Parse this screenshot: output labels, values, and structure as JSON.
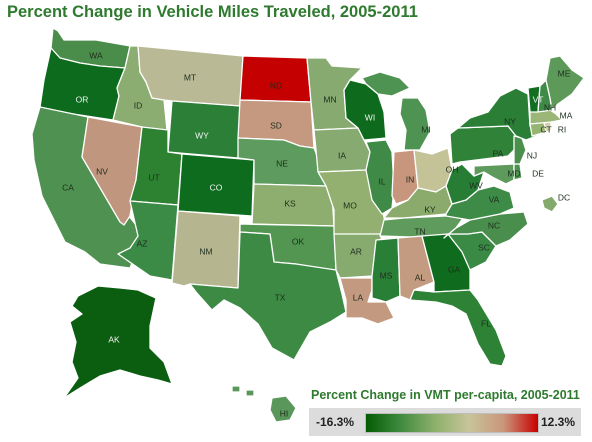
{
  "title": "Percent Change in Vehicle Miles Traveled, 2005-2011",
  "legend": {
    "title": "Percent Change in VMT per-capita, 2005-2011",
    "min_label": "-16.3%",
    "max_label": "12.3%",
    "min_value": -16.3,
    "max_value": 12.3,
    "color_stops": [
      "#045c04",
      "#3f8a3f",
      "#8eb06b",
      "#c8c49a",
      "#c9967b",
      "#c80000"
    ]
  },
  "states": [
    {
      "code": "WA",
      "fill": "#4a8c4a"
    },
    {
      "code": "OR",
      "fill": "#0d6b1d"
    },
    {
      "code": "CA",
      "fill": "#4f9150"
    },
    {
      "code": "NV",
      "fill": "#c1967f"
    },
    {
      "code": "ID",
      "fill": "#8cad71"
    },
    {
      "code": "MT",
      "fill": "#b9b996"
    },
    {
      "code": "WY",
      "fill": "#2b7f37"
    },
    {
      "code": "UT",
      "fill": "#2d8232"
    },
    {
      "code": "CO",
      "fill": "#0e6c1f"
    },
    {
      "code": "AZ",
      "fill": "#3b8b46"
    },
    {
      "code": "NM",
      "fill": "#b5b690"
    },
    {
      "code": "ND",
      "fill": "#c40000"
    },
    {
      "code": "SD",
      "fill": "#c5997f"
    },
    {
      "code": "NE",
      "fill": "#5e9b5e"
    },
    {
      "code": "KS",
      "fill": "#8dae6e"
    },
    {
      "code": "OK",
      "fill": "#529652"
    },
    {
      "code": "TX",
      "fill": "#3c8a44"
    },
    {
      "code": "MN",
      "fill": "#86aa70"
    },
    {
      "code": "IA",
      "fill": "#86aa6f"
    },
    {
      "code": "MO",
      "fill": "#93b070"
    },
    {
      "code": "AR",
      "fill": "#87aa6f"
    },
    {
      "code": "LA",
      "fill": "#c39a80"
    },
    {
      "code": "WI",
      "fill": "#0e6b1d"
    },
    {
      "code": "IL",
      "fill": "#3e8a46"
    },
    {
      "code": "MI",
      "fill": "#4f9352"
    },
    {
      "code": "IN",
      "fill": "#c8957d"
    },
    {
      "code": "OH",
      "fill": "#c4c398"
    },
    {
      "code": "KY",
      "fill": "#8bab6d"
    },
    {
      "code": "TN",
      "fill": "#5f9b5c"
    },
    {
      "code": "MS",
      "fill": "#2a7f37"
    },
    {
      "code": "AL",
      "fill": "#c39b80"
    },
    {
      "code": "GA",
      "fill": "#0f6b1d"
    },
    {
      "code": "FL",
      "fill": "#2d8236"
    },
    {
      "code": "SC",
      "fill": "#3a8a46"
    },
    {
      "code": "NC",
      "fill": "#4a8e4d"
    },
    {
      "code": "VA",
      "fill": "#3d8b46"
    },
    {
      "code": "WV",
      "fill": "#277d34"
    },
    {
      "code": "MD",
      "fill": "#5d9a5c"
    },
    {
      "code": "DE",
      "fill": "#4e9150"
    },
    {
      "code": "PA",
      "fill": "#2f8238"
    },
    {
      "code": "NJ",
      "fill": "#4b8f4d"
    },
    {
      "code": "NY",
      "fill": "#2a7e36"
    },
    {
      "code": "CT",
      "fill": "#98b472"
    },
    {
      "code": "RI",
      "fill": "#d3d0a8"
    },
    {
      "code": "MA",
      "fill": "#9bb677"
    },
    {
      "code": "VT",
      "fill": "#126f22"
    },
    {
      "code": "NH",
      "fill": "#3e8a46"
    },
    {
      "code": "ME",
      "fill": "#5d9a5a"
    },
    {
      "code": "DC",
      "fill": "#84a96d"
    },
    {
      "code": "AK",
      "fill": "#0b5e10"
    },
    {
      "code": "HI",
      "fill": "#5a975a"
    }
  ]
}
